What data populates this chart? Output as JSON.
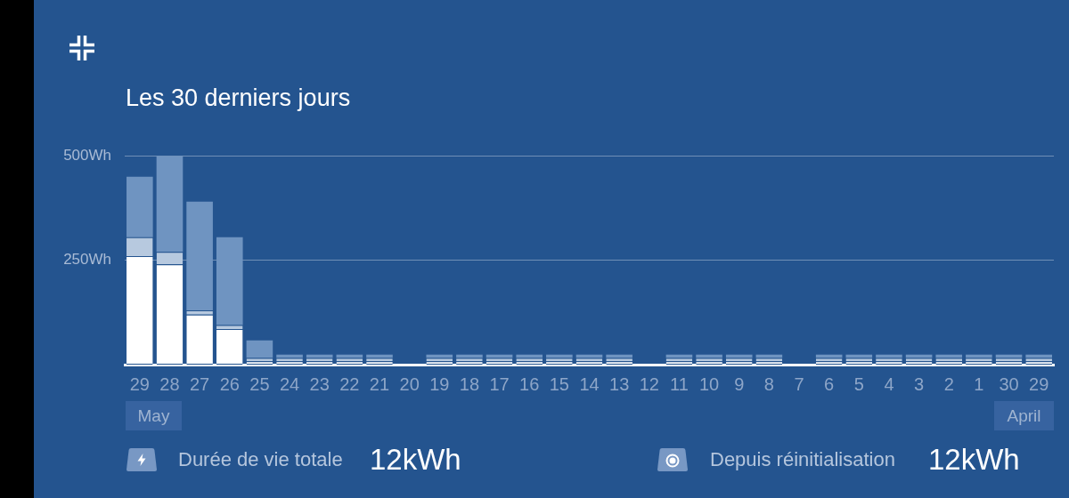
{
  "chart_data": {
    "type": "bar",
    "title": "Les 30 derniers jours",
    "categories": [
      "29",
      "28",
      "27",
      "26",
      "25",
      "24",
      "23",
      "22",
      "21",
      "20",
      "19",
      "18",
      "17",
      "16",
      "15",
      "14",
      "13",
      "12",
      "11",
      "10",
      "9",
      "8",
      "7",
      "6",
      "5",
      "4",
      "3",
      "2",
      "1",
      "30",
      "29"
    ],
    "stacked": true,
    "series": [
      {
        "color": "#ffffff",
        "values": [
          260,
          240,
          120,
          85,
          8,
          8,
          8,
          8,
          8,
          null,
          8,
          8,
          8,
          8,
          8,
          8,
          8,
          null,
          8,
          8,
          8,
          8,
          null,
          8,
          8,
          8,
          8,
          8,
          8,
          8,
          8
        ]
      },
      {
        "color": "#b7c9df",
        "values": [
          45,
          30,
          10,
          10,
          8,
          8,
          8,
          8,
          8,
          null,
          8,
          8,
          8,
          8,
          8,
          8,
          8,
          null,
          8,
          8,
          8,
          8,
          null,
          8,
          8,
          8,
          8,
          8,
          8,
          8,
          8
        ]
      },
      {
        "color": "#6f94c1",
        "values": [
          145,
          230,
          260,
          210,
          42,
          8,
          8,
          8,
          8,
          null,
          8,
          8,
          8,
          8,
          8,
          8,
          8,
          null,
          8,
          8,
          8,
          8,
          null,
          8,
          8,
          8,
          8,
          8,
          8,
          8,
          8
        ]
      }
    ],
    "ylim": [
      0,
      500
    ],
    "yticks": [
      {
        "value": 250,
        "label": "250Wh"
      },
      {
        "value": 500,
        "label": "500Wh"
      }
    ],
    "grid": "y",
    "annotations": [
      "May",
      "April",
      "Durée de vie totale",
      "12kWh",
      "Depuis réinitialisation",
      "12kWh"
    ]
  }
}
